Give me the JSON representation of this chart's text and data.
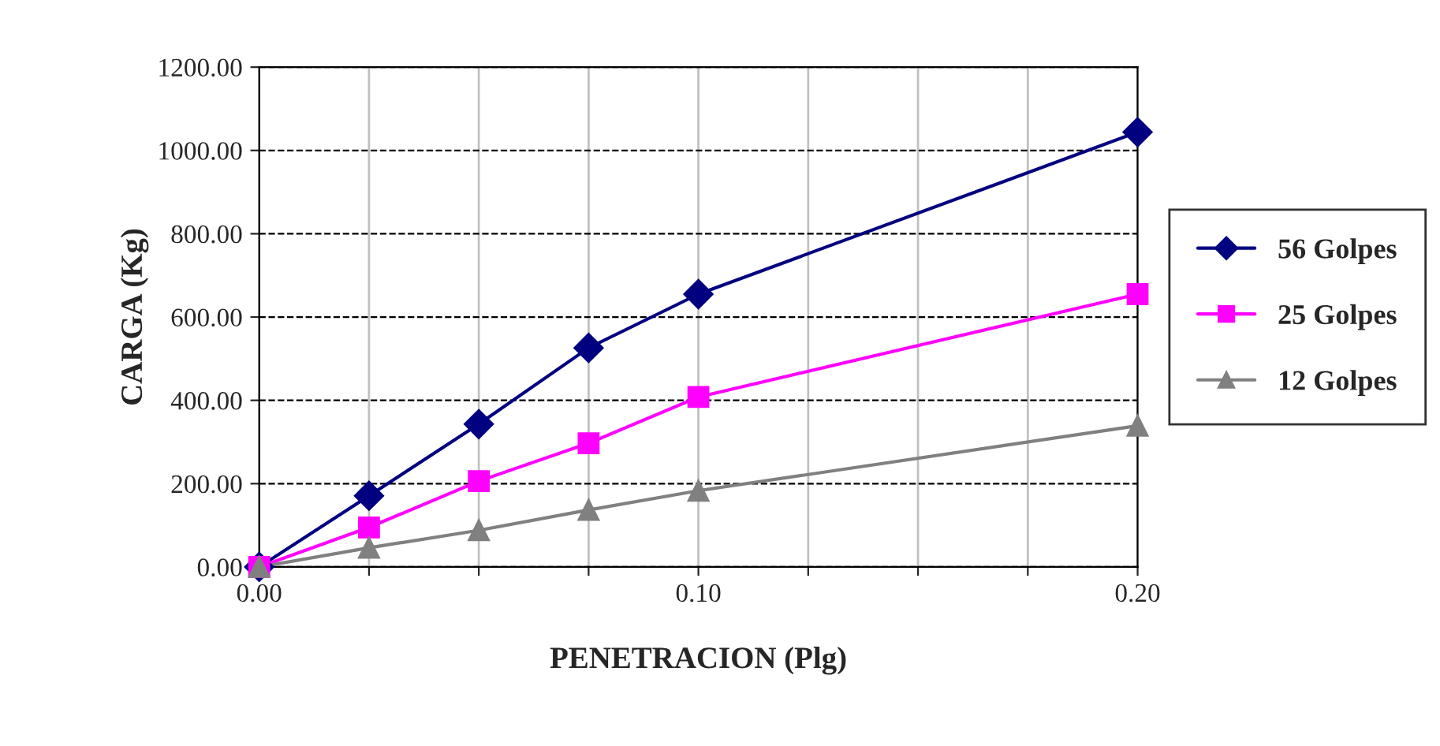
{
  "chart_data": {
    "type": "line",
    "xlabel": "PENETRACION (Plg)",
    "ylabel": "CARGA (Kg)",
    "x": [
      0,
      0.025,
      0.05,
      0.075,
      0.1,
      0.2
    ],
    "series": [
      {
        "name": "56 Golpes",
        "color": "#000080",
        "marker": "diamond",
        "values": [
          0,
          171,
          343,
          526,
          655,
          1044
        ]
      },
      {
        "name": "25 Golpes",
        "color": "#ff00ff",
        "marker": "square",
        "values": [
          0,
          95,
          206,
          297,
          408,
          655
        ]
      },
      {
        "name": "12 Golpes",
        "color": "#808080",
        "marker": "triangle",
        "values": [
          0,
          46,
          88,
          137,
          183,
          339
        ]
      }
    ],
    "xlim": [
      0,
      0.2
    ],
    "xticks": [
      {
        "value": 0,
        "label": "0.00"
      },
      {
        "value": 0.025,
        "label": null
      },
      {
        "value": 0.05,
        "label": null
      },
      {
        "value": 0.075,
        "label": null
      },
      {
        "value": 0.1,
        "label": "0.10"
      },
      {
        "value": 0.125,
        "label": null
      },
      {
        "value": 0.15,
        "label": null
      },
      {
        "value": 0.175,
        "label": null
      },
      {
        "value": 0.2,
        "label": "0.20"
      }
    ],
    "ylim": [
      0,
      1200
    ],
    "yticks": [
      {
        "value": 0,
        "label": "0.00"
      },
      {
        "value": 200,
        "label": "200.00"
      },
      {
        "value": 400,
        "label": "400.00"
      },
      {
        "value": 600,
        "label": "600.00"
      },
      {
        "value": 800,
        "label": "800.00"
      },
      {
        "value": 1000,
        "label": "1000.00"
      },
      {
        "value": 1200,
        "label": "1200.00"
      }
    ],
    "grid": true,
    "legend": "right",
    "line_style": "solid"
  }
}
